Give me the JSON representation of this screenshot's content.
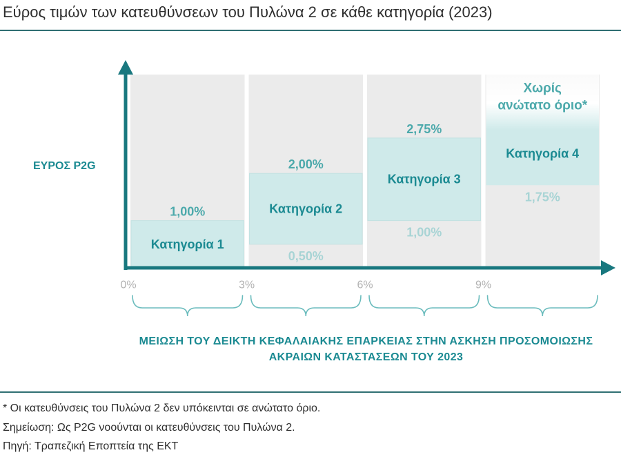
{
  "colors": {
    "accent": "#1b8a92",
    "axis": "#19787f",
    "rule": "#2f6f72",
    "column_bg": "#ebebeb",
    "box_fill": "#cfeaea",
    "box_stroke": "#c2e2e2",
    "label_high": "#4ca9ab",
    "label_low": "#a8d4d5",
    "tick": "#b2b2b2",
    "brace": "#6bbcbd"
  },
  "chart_data": {
    "type": "bar",
    "title": "Εύρος τιμών των κατευθύνσεων του Πυλώνα 2 σε κάθε κατηγορία (2023)",
    "ylabel": "ΕΥΡΟΣ P2G",
    "xlabel_lines": [
      "ΜΕΙΩΣΗ ΤΟΥ ΔΕΙΚΤΗ ΚΕΦΑΛΑΙΑΚΗΣ ΕΠΑΡΚΕΙΑΣ ΣΤΗΝ ΑΣΚΗΣΗ ΠΡΟΣΟΜΟΙΩΣΗΣ",
      "ΑΚΡΑΙΩΝ ΚΑΤΑΣΤΑΣΕΩΝ ΤΟΥ 2023"
    ],
    "x_tick_labels": [
      "0%",
      "3%",
      "6%",
      "9%"
    ],
    "x_tick_values": [
      0,
      3,
      6,
      9
    ],
    "xlim": [
      0,
      12
    ],
    "ylim": [
      0,
      4.4
    ],
    "grid": false,
    "categories": [
      {
        "label": "Κατηγορία 1",
        "x_range": [
          0,
          3
        ],
        "low": 0,
        "high": 1.0,
        "high_label": "1,00%"
      },
      {
        "label": "Κατηγορία 2",
        "x_range": [
          3,
          6
        ],
        "low": 0.5,
        "high": 2.0,
        "high_label": "2,00%",
        "low_label": "0,50%"
      },
      {
        "label": "Κατηγορία 3",
        "x_range": [
          6,
          9
        ],
        "low": 1.0,
        "high": 2.75,
        "high_label": "2,75%",
        "low_label": "1,00%"
      },
      {
        "label": "Κατηγορία 4",
        "x_range": [
          9,
          null
        ],
        "low": 1.75,
        "high": null,
        "high_label_lines": [
          "Χωρίς",
          "ανώτατο όριο*"
        ],
        "low_label": "1,75%"
      }
    ]
  },
  "notes": [
    "* Οι κατευθύνσεις του Πυλώνα 2 δεν υπόκεινται σε ανώτατο όριο.",
    "Σημείωση: Ως P2G νοούνται οι κατευθύνσεις του Πυλώνα 2.",
    "Πηγή: Τραπεζική Εποπτεία της ΕΚΤ"
  ]
}
